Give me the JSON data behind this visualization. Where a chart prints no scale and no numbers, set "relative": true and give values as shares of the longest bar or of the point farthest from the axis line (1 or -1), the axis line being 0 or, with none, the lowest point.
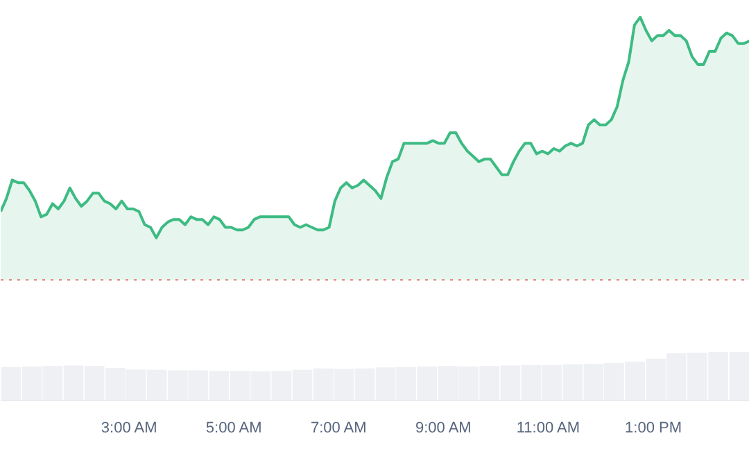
{
  "chart_data": [
    {
      "type": "area",
      "relative": true,
      "categories": [
        null,
        null,
        null,
        null,
        null,
        null,
        null,
        null,
        null,
        null,
        null,
        null,
        null,
        null,
        null,
        null,
        null,
        null,
        null,
        null,
        null,
        null,
        null,
        null,
        null,
        null,
        null,
        null,
        null,
        null,
        null,
        null,
        null,
        null,
        null,
        null,
        null,
        null,
        null,
        null,
        null,
        null,
        null,
        null,
        null,
        null,
        null,
        null,
        null,
        null,
        null,
        null,
        null,
        null,
        null,
        null,
        null,
        null,
        null,
        null,
        null,
        null,
        null,
        null,
        null,
        null,
        null,
        null,
        null,
        null,
        null,
        null,
        null,
        null,
        null,
        null,
        null,
        null,
        null,
        null,
        null,
        null,
        null,
        null,
        null,
        null,
        null,
        null,
        null,
        null,
        null,
        null,
        null,
        null,
        null,
        null,
        null,
        null,
        null,
        null,
        null,
        null,
        null,
        null,
        null,
        null,
        null,
        null,
        null,
        null,
        null,
        null,
        null,
        null,
        null,
        null,
        null,
        null,
        null,
        null,
        null,
        null,
        null,
        null,
        null,
        null,
        null,
        null,
        null,
        null,
        null
      ],
      "series": [
        {
          "color": "#3dbb83",
          "values": [
            0.26,
            0.31,
            0.38,
            0.37,
            0.37,
            0.34,
            0.3,
            0.24,
            0.25,
            0.29,
            0.27,
            0.3,
            0.35,
            0.31,
            0.28,
            0.3,
            0.33,
            0.33,
            0.3,
            0.29,
            0.27,
            0.3,
            0.27,
            0.27,
            0.26,
            0.21,
            0.2,
            0.16,
            0.2,
            0.22,
            0.23,
            0.23,
            0.21,
            0.24,
            0.23,
            0.23,
            0.21,
            0.24,
            0.23,
            0.2,
            0.2,
            0.19,
            0.19,
            0.2,
            0.23,
            0.24,
            0.24,
            0.24,
            0.24,
            0.24,
            0.24,
            0.21,
            0.2,
            0.21,
            0.2,
            0.19,
            0.19,
            0.2,
            0.3,
            0.35,
            0.37,
            0.35,
            0.36,
            0.38,
            0.36,
            0.34,
            0.31,
            0.39,
            0.45,
            0.46,
            0.52,
            0.52,
            0.52,
            0.52,
            0.52,
            0.53,
            0.52,
            0.52,
            0.56,
            0.56,
            0.52,
            0.49,
            0.47,
            0.45,
            0.46,
            0.46,
            0.43,
            0.4,
            0.4,
            0.45,
            0.49,
            0.52,
            0.52,
            0.48,
            0.49,
            0.48,
            0.5,
            0.49,
            0.51,
            0.52,
            0.51,
            0.52,
            0.59,
            0.61,
            0.59,
            0.59,
            0.61,
            0.66,
            0.76,
            0.83,
            0.97,
            1,
            0.95,
            0.91,
            0.93,
            0.93,
            0.95,
            0.93,
            0.93,
            0.91,
            0.85,
            0.82,
            0.82,
            0.87,
            0.87,
            0.92,
            0.94,
            0.93,
            0.9,
            0.9,
            0.91
          ]
        }
      ],
      "ref_lines": [
        {
          "axis": "y",
          "value": 0,
          "color": "#e57373",
          "line_style": "dotted"
        }
      ]
    },
    {
      "type": "bar",
      "relative": true,
      "xlim": [
        0.54,
        14.84
      ],
      "xticks": [
        {
          "value": 3,
          "label": "3:00 AM"
        },
        {
          "value": 5,
          "label": "5:00 AM"
        },
        {
          "value": 7,
          "label": "7:00 AM"
        },
        {
          "value": 9,
          "label": "9:00 AM"
        },
        {
          "value": 11,
          "label": "11:00 AM"
        },
        {
          "value": 13,
          "label": "1:00 PM"
        }
      ],
      "series": [
        {
          "color": "#eef0f3",
          "x": [
            0.74,
            1.14,
            1.53,
            1.93,
            2.33,
            2.73,
            3.12,
            3.52,
            3.92,
            4.31,
            4.71,
            5.11,
            5.5,
            5.9,
            6.3,
            6.7,
            7.09,
            7.49,
            7.89,
            8.28,
            8.68,
            9.08,
            9.47,
            9.87,
            10.27,
            10.67,
            11.06,
            11.46,
            11.86,
            12.25,
            12.65,
            13.05,
            13.44,
            13.84,
            14.24,
            14.64
          ],
          "values": [
            0.69,
            0.7,
            0.71,
            0.72,
            0.71,
            0.67,
            0.64,
            0.63,
            0.62,
            0.62,
            0.61,
            0.61,
            0.6,
            0.61,
            0.63,
            0.66,
            0.65,
            0.66,
            0.68,
            0.69,
            0.7,
            0.71,
            0.7,
            0.71,
            0.72,
            0.73,
            0.73,
            0.74,
            0.75,
            0.77,
            0.8,
            0.86,
            0.97,
            0.98,
            1.0,
            1.0
          ]
        }
      ]
    }
  ]
}
